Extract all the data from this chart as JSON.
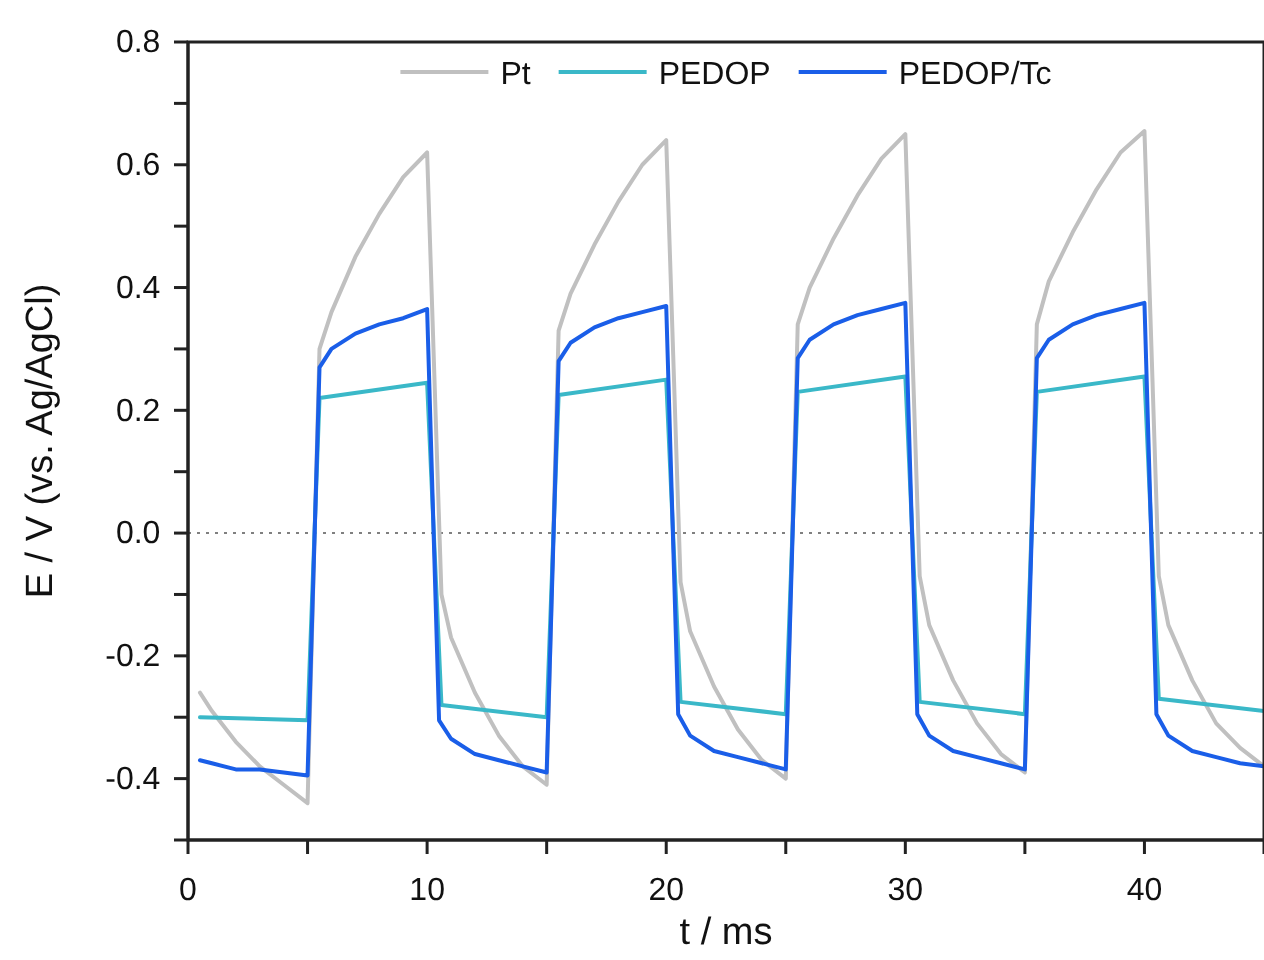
{
  "chart_data": {
    "type": "line",
    "xlabel": "t / ms",
    "ylabel": "E / V (vs. Ag/AgCl)",
    "xlim": [
      0,
      45
    ],
    "ylim": [
      -0.5,
      0.8
    ],
    "xticks": [
      0,
      {
        "value": 5,
        "label": null
      },
      10,
      {
        "value": 15,
        "label": null
      },
      20,
      {
        "value": 25,
        "label": null
      },
      30,
      {
        "value": 35,
        "label": null
      },
      40,
      {
        "value": 45,
        "label": null
      }
    ],
    "yticks": [
      {
        "value": -0.5,
        "label": null
      },
      -0.4,
      {
        "value": -0.3,
        "label": null
      },
      -0.2,
      {
        "value": -0.1,
        "label": null
      },
      {
        "value": 0,
        "label": "0.0"
      },
      {
        "value": 0.1,
        "label": null
      },
      0.2,
      {
        "value": 0.3,
        "label": null
      },
      0.4,
      {
        "value": 0.5,
        "label": null
      },
      0.6,
      {
        "value": 0.7,
        "label": null
      },
      0.8
    ],
    "grid": false,
    "legend": "top",
    "marker": "none",
    "line_style": "solid",
    "ref_lines": [
      {
        "axis": "y",
        "value": 0,
        "color": "#808080",
        "line_style": "dotted"
      }
    ],
    "series": [
      {
        "name": "Pt",
        "color": "#c0c0c0",
        "x": [
          0.5,
          1,
          2,
          3,
          4,
          5,
          5.5,
          6,
          7,
          8,
          9,
          10,
          10.6,
          11,
          12,
          13,
          14,
          15,
          15.5,
          16,
          17,
          18,
          19,
          20,
          20.6,
          21,
          22,
          23,
          24,
          25,
          25.5,
          26,
          27,
          28,
          29,
          30,
          30.6,
          31,
          32,
          33,
          34,
          35,
          35.5,
          36,
          37,
          38,
          39,
          40,
          40.6,
          41,
          42,
          43,
          44,
          45
        ],
        "values": [
          -0.26,
          -0.29,
          -0.34,
          -0.38,
          -0.41,
          -0.44,
          0.3,
          0.36,
          0.45,
          0.52,
          0.58,
          0.62,
          -0.1,
          -0.17,
          -0.26,
          -0.33,
          -0.38,
          -0.41,
          0.33,
          0.39,
          0.47,
          0.54,
          0.6,
          0.64,
          -0.08,
          -0.16,
          -0.25,
          -0.32,
          -0.37,
          -0.4,
          0.34,
          0.4,
          0.48,
          0.55,
          0.61,
          0.65,
          -0.07,
          -0.15,
          -0.24,
          -0.31,
          -0.36,
          -0.39,
          0.34,
          0.41,
          0.49,
          0.56,
          0.62,
          0.655,
          -0.07,
          -0.15,
          -0.24,
          -0.31,
          -0.35,
          -0.38
        ]
      },
      {
        "name": "PEDOP",
        "color": "#3ab8c8",
        "x": [
          0.5,
          5,
          5.5,
          10,
          10.6,
          15,
          15.5,
          20,
          20.6,
          25,
          25.5,
          30,
          30.6,
          35,
          35.5,
          40,
          40.6,
          45
        ],
        "values": [
          -0.3,
          -0.305,
          0.22,
          0.245,
          -0.28,
          -0.3,
          0.225,
          0.25,
          -0.275,
          -0.295,
          0.23,
          0.255,
          -0.275,
          -0.295,
          0.23,
          0.255,
          -0.27,
          -0.29
        ]
      },
      {
        "name": "PEDOP/Tc",
        "color": "#1a5ee8",
        "x": [
          0.5,
          1,
          2,
          3,
          4,
          5,
          5.5,
          6,
          7,
          8,
          9,
          10,
          10.5,
          11,
          12,
          13,
          14,
          15,
          15.5,
          16,
          17,
          18,
          19,
          20,
          20.5,
          21,
          22,
          23,
          24,
          25,
          25.5,
          26,
          27,
          28,
          29,
          30,
          30.5,
          31,
          32,
          33,
          34,
          35,
          35.5,
          36,
          37,
          38,
          39,
          40,
          40.5,
          41,
          42,
          43,
          44,
          45
        ],
        "values": [
          -0.37,
          -0.375,
          -0.385,
          -0.385,
          -0.39,
          -0.395,
          0.27,
          0.3,
          0.325,
          0.34,
          0.35,
          0.365,
          -0.305,
          -0.335,
          -0.36,
          -0.37,
          -0.38,
          -0.39,
          0.28,
          0.31,
          0.335,
          0.35,
          0.36,
          0.37,
          -0.295,
          -0.33,
          -0.355,
          -0.365,
          -0.375,
          -0.385,
          0.285,
          0.315,
          0.34,
          0.355,
          0.365,
          0.375,
          -0.295,
          -0.33,
          -0.355,
          -0.365,
          -0.375,
          -0.385,
          0.285,
          0.315,
          0.34,
          0.355,
          0.365,
          0.375,
          -0.295,
          -0.33,
          -0.355,
          -0.365,
          -0.375,
          -0.38
        ]
      }
    ]
  }
}
